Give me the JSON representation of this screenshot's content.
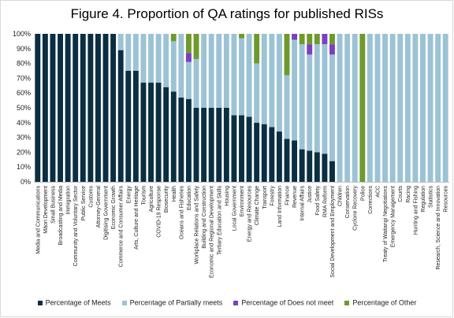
{
  "chart_data": {
    "type": "bar",
    "stacked": true,
    "title": "Figure 4. Proportion of QA ratings for published RISs",
    "xlabel": "",
    "ylabel": "",
    "ylim": [
      0,
      100
    ],
    "yticks": [
      "0%",
      "10%",
      "20%",
      "30%",
      "40%",
      "50%",
      "60%",
      "70%",
      "80%",
      "90%",
      "100%"
    ],
    "grid": false,
    "legend_position": "bottom",
    "categories": [
      "Media and Communications",
      "Māori Development",
      "Small Business",
      "Broadcasting and Media",
      "Immigration",
      "Community and Voluntary Sector",
      "Public Service",
      "Customs",
      "Attorney-General",
      "Digitising Government",
      "Economic Growth",
      "Commerce and Consumer Affairs",
      "Energy",
      "Arts, Culture and Heritage",
      "Tourism",
      "Agriculture",
      "COVID-19 Response",
      "Biosecurity",
      "Health",
      "Oceans and Fisheries",
      "Education",
      "Workplace Relations and Safety",
      "Building and Construction",
      "Economic and Regional Development",
      "Tertiary Education and Skills",
      "Housing",
      "Local Government",
      "Environment",
      "Energy and Resources",
      "Climate Change",
      "Transport",
      "Forestry",
      "Land Information",
      "Finance",
      "Revenue",
      "Internal Affairs",
      "Justice",
      "Food Safety",
      "RMA Reform",
      "Social Development and Employment",
      "Children",
      "Conservation",
      "Cyclone Recovery",
      "Police",
      "Corrections",
      "ACC",
      "Treaty of Waitangi Negotiations",
      "Emergency Management",
      "Courts",
      "Racing",
      "Hunting and Fishing",
      "Regulation",
      "Statistics",
      "Research, Science and Innovation",
      "Resources"
    ],
    "series": [
      {
        "name": "Percentage of Meets",
        "color": "#0a2e42",
        "values": [
          100,
          100,
          100,
          100,
          100,
          100,
          100,
          100,
          100,
          100,
          100,
          89,
          75,
          75,
          67,
          67,
          67,
          64,
          61,
          57,
          56,
          50,
          50,
          50,
          50,
          50,
          45,
          45,
          44,
          40,
          39,
          37,
          34,
          29,
          28,
          22,
          21,
          20,
          19,
          14,
          0,
          0,
          0,
          0,
          0,
          0,
          0,
          0,
          0,
          0,
          0,
          0,
          0,
          0,
          0
        ]
      },
      {
        "name": "Percentage of Partially meets",
        "color": "#9cc3d5",
        "values": [
          0,
          0,
          0,
          0,
          0,
          0,
          0,
          0,
          0,
          0,
          0,
          11,
          25,
          25,
          33,
          33,
          33,
          36,
          34,
          43,
          25,
          33,
          50,
          50,
          50,
          50,
          55,
          52,
          56,
          40,
          61,
          63,
          66,
          43,
          68,
          71,
          65,
          73,
          74,
          72,
          100,
          100,
          100,
          0,
          100,
          100,
          100,
          100,
          100,
          100,
          100,
          100,
          100,
          100,
          100
        ]
      },
      {
        "name": "Percentage of Does not meet",
        "color": "#7b3fc4",
        "values": [
          0,
          0,
          0,
          0,
          0,
          0,
          0,
          0,
          0,
          0,
          0,
          0,
          0,
          0,
          0,
          0,
          0,
          0,
          0,
          0,
          6,
          0,
          0,
          0,
          0,
          0,
          0,
          0,
          0,
          0,
          0,
          0,
          0,
          0,
          4,
          0,
          7,
          0,
          7,
          7,
          0,
          0,
          0,
          0,
          0,
          0,
          0,
          0,
          0,
          0,
          0,
          0,
          0,
          0,
          0
        ]
      },
      {
        "name": "Percentage of Other",
        "color": "#6e9a2c",
        "values": [
          0,
          0,
          0,
          0,
          0,
          0,
          0,
          0,
          0,
          0,
          0,
          0,
          0,
          0,
          0,
          0,
          0,
          0,
          5,
          0,
          13,
          17,
          0,
          0,
          0,
          0,
          0,
          3,
          0,
          20,
          0,
          0,
          0,
          28,
          0,
          7,
          7,
          7,
          0,
          7,
          0,
          0,
          0,
          100,
          0,
          0,
          0,
          0,
          0,
          0,
          0,
          0,
          0,
          0,
          0
        ]
      }
    ]
  }
}
